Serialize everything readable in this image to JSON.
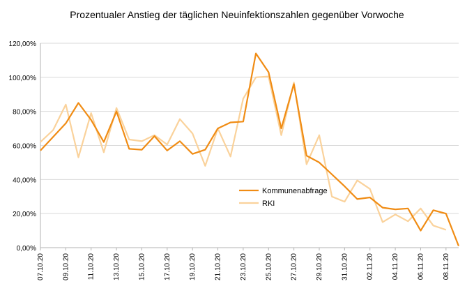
{
  "chart_data": {
    "type": "line",
    "title": "Prozentualer Anstieg der täglichen Neuinfektionszahlen gegenüber Vorwoche",
    "xlabel": "",
    "ylabel": "",
    "ylim": [
      0,
      120
    ],
    "y_ticks": [
      "0,00%",
      "20,00%",
      "40,00%",
      "60,00%",
      "80,00%",
      "100,00%",
      "120,00%"
    ],
    "x": [
      "07.10.20",
      "08.10.20",
      "09.10.20",
      "10.10.20",
      "11.10.20",
      "12.10.20",
      "13.10.20",
      "14.10.20",
      "15.10.20",
      "16.10.20",
      "17.10.20",
      "18.10.20",
      "19.10.20",
      "20.10.20",
      "21.10.20",
      "22.10.20",
      "23.10.20",
      "24.10.20",
      "25.10.20",
      "26.10.20",
      "27.10.20",
      "28.10.20",
      "29.10.20",
      "30.10.20",
      "31.10.20",
      "01.11.20",
      "02.11.20",
      "03.11.20",
      "04.11.20",
      "05.11.20",
      "06.11.20",
      "07.11.20",
      "08.11.20",
      "09.11.20"
    ],
    "x_tick_labels": [
      "07.10.20",
      "09.10.20",
      "11.10.20",
      "13.10.20",
      "15.10.20",
      "17.10.20",
      "19.10.20",
      "21.10.20",
      "23.10.20",
      "25.10.20",
      "27.10.20",
      "29.10.20",
      "31.10.20",
      "02.11.20",
      "04.11.20",
      "06.11.20",
      "08.11.20"
    ],
    "series": [
      {
        "name": "Kommunenabfrage",
        "color": "#f08c14",
        "values": [
          57,
          65,
          73,
          85,
          75,
          62,
          80,
          58,
          57.5,
          65.5,
          57,
          62.5,
          55,
          57.5,
          70,
          73.5,
          74,
          114,
          103,
          70,
          96,
          54,
          50,
          43,
          36,
          28.5,
          29.5,
          23.5,
          22.5,
          23,
          10,
          22,
          20,
          1
        ]
      },
      {
        "name": "RKI",
        "color": "#fad29b",
        "values": [
          62,
          69,
          84,
          53,
          79,
          56,
          82,
          63.5,
          62.5,
          66,
          60.5,
          75.5,
          67,
          48,
          70,
          53.5,
          87.5,
          100,
          100.5,
          66,
          97,
          49,
          66,
          30,
          27,
          39.5,
          34.5,
          15,
          19.5,
          15.5,
          23,
          13,
          10.5,
          null
        ]
      }
    ],
    "grid": "horizontal",
    "legend_position": "center-right"
  }
}
